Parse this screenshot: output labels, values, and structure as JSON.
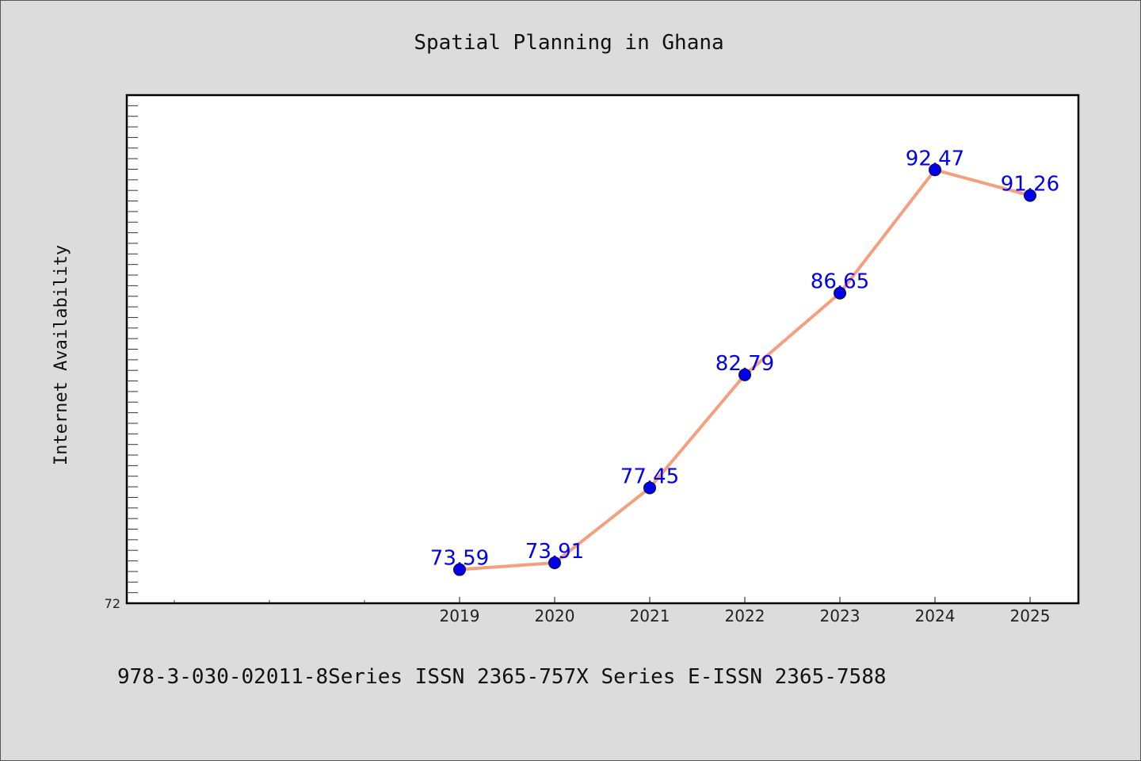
{
  "chart_data": {
    "type": "line",
    "title": "Spatial Planning in Ghana",
    "xlabel": "",
    "ylabel": "Internet Availability",
    "x": [
      "2019",
      "2020",
      "2021",
      "2022",
      "2023",
      "2024",
      "2025"
    ],
    "series": [
      {
        "values": [
          73.59,
          73.91,
          77.45,
          82.79,
          86.65,
          92.47,
          91.26
        ],
        "line_color": "#f4a07f",
        "marker_color": "#0000ee",
        "label_color": "#0000ee"
      }
    ],
    "ylim": [
      72,
      96
    ],
    "y_tick_labels": [
      "72"
    ],
    "grid": false,
    "legend": "none"
  },
  "footer": "978-3-030-02011-8Series ISSN 2365-757X Series E-ISSN 2365-7588"
}
